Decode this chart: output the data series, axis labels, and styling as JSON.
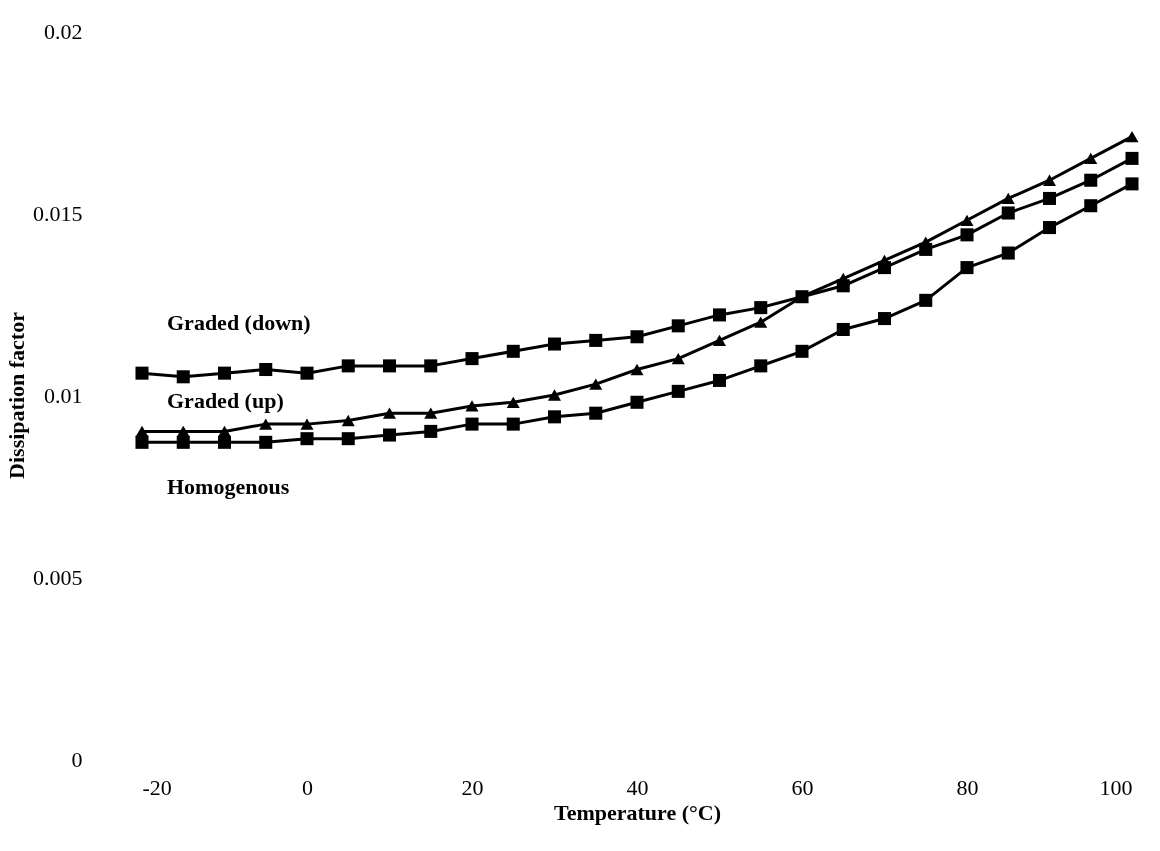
{
  "chart_data": {
    "type": "line",
    "xlabel": "Temperature (°C)",
    "ylabel": "Dissipation factor",
    "x": [
      -20,
      -15,
      -10,
      -5,
      0,
      5,
      10,
      15,
      20,
      25,
      30,
      35,
      40,
      45,
      50,
      55,
      60,
      65,
      70,
      75,
      80,
      85,
      90,
      95,
      100
    ],
    "series": [
      {
        "name": "Graded (down)",
        "color": "#000000",
        "marker": "square",
        "values": [
          0.0106,
          0.0105,
          0.0106,
          0.0107,
          0.0106,
          0.0108,
          0.0108,
          0.0108,
          0.011,
          0.0112,
          0.0114,
          0.0115,
          0.0116,
          0.0119,
          0.0122,
          0.0124,
          0.0127,
          0.013,
          0.0135,
          0.014,
          0.0144,
          0.015,
          0.0154,
          0.0159,
          0.0165
        ]
      },
      {
        "name": "Graded (up)",
        "color": "#000000",
        "marker": "triangle",
        "values": [
          0.009,
          0.009,
          0.009,
          0.0092,
          0.0092,
          0.0093,
          0.0095,
          0.0095,
          0.0097,
          0.0098,
          0.01,
          0.0103,
          0.0107,
          0.011,
          0.0115,
          0.012,
          0.0127,
          0.0132,
          0.0137,
          0.0142,
          0.0148,
          0.0154,
          0.0159,
          0.0165,
          0.0171
        ]
      },
      {
        "name": "Homogenous",
        "color": "#000000",
        "marker": "square",
        "values": [
          0.0087,
          0.0087,
          0.0087,
          0.0087,
          0.0088,
          0.0088,
          0.0089,
          0.009,
          0.0092,
          0.0092,
          0.0094,
          0.0095,
          0.0098,
          0.0101,
          0.0104,
          0.0108,
          0.0112,
          0.0118,
          0.0121,
          0.0126,
          0.0135,
          0.0139,
          0.0146,
          0.0152,
          0.0158
        ]
      }
    ],
    "xlim": [
      -20,
      100
    ],
    "xticks": [
      -20,
      0,
      20,
      40,
      60,
      80,
      100
    ],
    "ylim": [
      0,
      0.02
    ],
    "yticks": [
      0,
      0.005,
      0.01,
      0.015,
      0.02
    ],
    "grid": false,
    "legend": false,
    "line_style": "solid"
  }
}
